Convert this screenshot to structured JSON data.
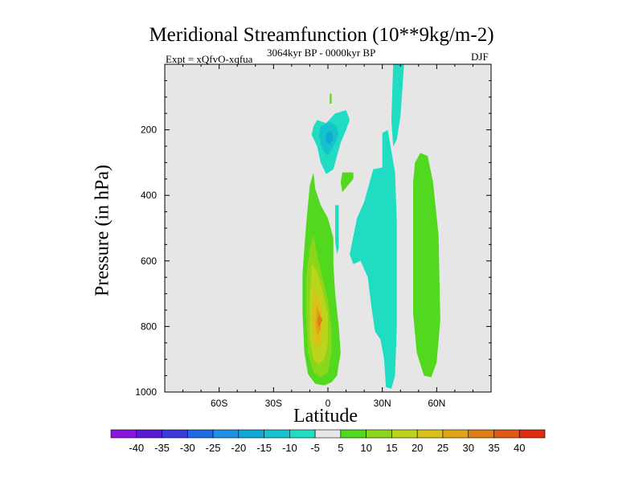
{
  "chart_data": {
    "type": "contour",
    "title": "Meridional Streamfunction (10**9kg/m-2)",
    "experiment": "Expt = xQfvO-xqfua",
    "period": "3064kyr BP - 0000kyr BP",
    "season": "DJF",
    "xlabel": "Latitude",
    "ylabel": "Pressure (in hPa)",
    "xlim": [
      -90,
      90
    ],
    "ylim": [
      1000,
      0
    ],
    "x_ticks": [
      {
        "value": -60,
        "label": "60S"
      },
      {
        "value": -30,
        "label": "30S"
      },
      {
        "value": 0,
        "label": "0"
      },
      {
        "value": 30,
        "label": "30N"
      },
      {
        "value": 60,
        "label": "60N"
      }
    ],
    "y_ticks": [
      200,
      400,
      600,
      800,
      1000
    ],
    "colorbar": {
      "levels": [
        -40,
        -35,
        -30,
        -25,
        -20,
        -15,
        -10,
        -5,
        5,
        10,
        15,
        20,
        25,
        30,
        35,
        40
      ],
      "colors": [
        "#8a16e0",
        "#5b1ad6",
        "#3a3ad9",
        "#1e6be6",
        "#1c8fe6",
        "#12a9d8",
        "#16c3cd",
        "#1fdcc2",
        "#e6e6e6",
        "#52d81e",
        "#8ad61a",
        "#bcd41c",
        "#d8c21a",
        "#e0a416",
        "#e07e16",
        "#e05a16",
        "#e02c12"
      ]
    },
    "filled_regions": [
      {
        "name": "equatorial positive cell",
        "level_color": "#52d81e",
        "points": [
          [
            -12,
            490
          ],
          [
            -10,
            370
          ],
          [
            -8,
            330
          ],
          [
            -7,
            380
          ],
          [
            -4,
            430
          ],
          [
            0,
            470
          ],
          [
            3,
            530
          ],
          [
            3,
            610
          ],
          [
            4,
            700
          ],
          [
            6,
            800
          ],
          [
            7,
            880
          ],
          [
            5,
            950
          ],
          [
            2,
            970
          ],
          [
            -2,
            980
          ],
          [
            -7,
            975
          ],
          [
            -11,
            945
          ],
          [
            -13,
            880
          ],
          [
            -14,
            760
          ],
          [
            -14,
            640
          ],
          [
            -13,
            560
          ]
        ]
      },
      {
        "name": "equatorial positive cell 10",
        "level_color": "#8ad61a",
        "points": [
          [
            -10,
            560
          ],
          [
            -8,
            520
          ],
          [
            -6,
            580
          ],
          [
            -3,
            650
          ],
          [
            0,
            720
          ],
          [
            2,
            800
          ],
          [
            2,
            880
          ],
          [
            0,
            940
          ],
          [
            -4,
            955
          ],
          [
            -8,
            940
          ],
          [
            -11,
            880
          ],
          [
            -12,
            760
          ],
          [
            -12,
            650
          ]
        ]
      },
      {
        "name": "equatorial positive cell 15",
        "level_color": "#bcd41c",
        "points": [
          [
            -9,
            610
          ],
          [
            -6,
            630
          ],
          [
            -3,
            690
          ],
          [
            0,
            760
          ],
          [
            0,
            850
          ],
          [
            -2,
            900
          ],
          [
            -5,
            915
          ],
          [
            -8,
            900
          ],
          [
            -10,
            840
          ],
          [
            -10,
            720
          ]
        ]
      },
      {
        "name": "equatorial positive cell 20",
        "level_color": "#d8c21a",
        "points": [
          [
            -8,
            690
          ],
          [
            -6,
            700
          ],
          [
            -4,
            730
          ],
          [
            -3,
            790
          ],
          [
            -4,
            850
          ],
          [
            -6,
            865
          ],
          [
            -8,
            840
          ],
          [
            -9,
            770
          ]
        ]
      },
      {
        "name": "equatorial positive cell 25",
        "level_color": "#e0a416",
        "points": [
          [
            -6,
            735
          ],
          [
            -4,
            765
          ],
          [
            -4,
            810
          ],
          [
            -6,
            830
          ],
          [
            -7,
            790
          ]
        ]
      },
      {
        "name": "equatorial positive cell 30",
        "level_color": "#e07e16",
        "points": [
          [
            -5,
            760
          ],
          [
            -3,
            780
          ],
          [
            -5,
            805
          ],
          [
            -6,
            785
          ]
        ]
      },
      {
        "name": "upper negative cell",
        "level_color": "#1fdcc2",
        "points": [
          [
            -8,
            190
          ],
          [
            -6,
            170
          ],
          [
            -1,
            180
          ],
          [
            4,
            150
          ],
          [
            10,
            140
          ],
          [
            12,
            170
          ],
          [
            10,
            200
          ],
          [
            7,
            240
          ],
          [
            5,
            280
          ],
          [
            3,
            320
          ],
          [
            -1,
            335
          ],
          [
            -4,
            300
          ],
          [
            -6,
            250
          ],
          [
            -9,
            215
          ]
        ]
      },
      {
        "name": "upper negative cell 10",
        "level_color": "#16c3cd",
        "points": [
          [
            -4,
            190
          ],
          [
            1,
            175
          ],
          [
            5,
            190
          ],
          [
            6,
            215
          ],
          [
            3,
            250
          ],
          [
            0,
            280
          ],
          [
            -3,
            260
          ],
          [
            -5,
            220
          ]
        ]
      },
      {
        "name": "upper negative cell 15",
        "level_color": "#12a9d8",
        "points": [
          [
            -1,
            210
          ],
          [
            2,
            205
          ],
          [
            3,
            225
          ],
          [
            1,
            245
          ],
          [
            -1,
            235
          ]
        ]
      },
      {
        "name": "30N negative band",
        "level_color": "#1fdcc2",
        "points": [
          [
            12,
            580
          ],
          [
            16,
            470
          ],
          [
            20,
            420
          ],
          [
            25,
            320
          ],
          [
            30,
            315
          ],
          [
            30,
            210
          ],
          [
            33,
            200
          ],
          [
            37,
            330
          ],
          [
            38,
            480
          ],
          [
            38,
            800
          ],
          [
            37,
            950
          ],
          [
            35,
            990
          ],
          [
            32,
            985
          ],
          [
            31,
            900
          ],
          [
            29,
            840
          ],
          [
            26,
            815
          ],
          [
            24,
            740
          ],
          [
            22,
            650
          ],
          [
            18,
            600
          ],
          [
            14,
            610
          ]
        ]
      },
      {
        "name": "60N positive band",
        "level_color": "#52d81e",
        "points": [
          [
            48,
            300
          ],
          [
            51,
            270
          ],
          [
            55,
            280
          ],
          [
            58,
            360
          ],
          [
            61,
            520
          ],
          [
            62,
            780
          ],
          [
            60,
            910
          ],
          [
            57,
            955
          ],
          [
            53,
            950
          ],
          [
            49,
            880
          ],
          [
            47,
            760
          ],
          [
            47,
            520
          ],
          [
            47,
            360
          ]
        ]
      },
      {
        "name": "top negative plume",
        "level_color": "#1fdcc2",
        "points": [
          [
            36,
            0
          ],
          [
            42,
            0
          ],
          [
            41,
            80
          ],
          [
            40,
            160
          ],
          [
            38,
            230
          ],
          [
            36,
            250
          ],
          [
            35,
            170
          ]
        ]
      },
      {
        "name": "small equatorial positive patch",
        "level_color": "#52d81e",
        "points": [
          [
            8,
            330
          ],
          [
            14,
            330
          ],
          [
            14,
            350
          ],
          [
            8,
            390
          ],
          [
            7,
            360
          ]
        ]
      },
      {
        "name": "small upper positive patch",
        "level_color": "#52d81e",
        "points": [
          [
            1,
            90
          ],
          [
            2,
            90
          ],
          [
            2,
            120
          ],
          [
            1,
            120
          ]
        ]
      },
      {
        "name": "small lower negative band",
        "level_color": "#1fdcc2",
        "points": [
          [
            4,
            430
          ],
          [
            6,
            430
          ],
          [
            6,
            560
          ],
          [
            5,
            580
          ],
          [
            4,
            540
          ]
        ]
      }
    ]
  }
}
